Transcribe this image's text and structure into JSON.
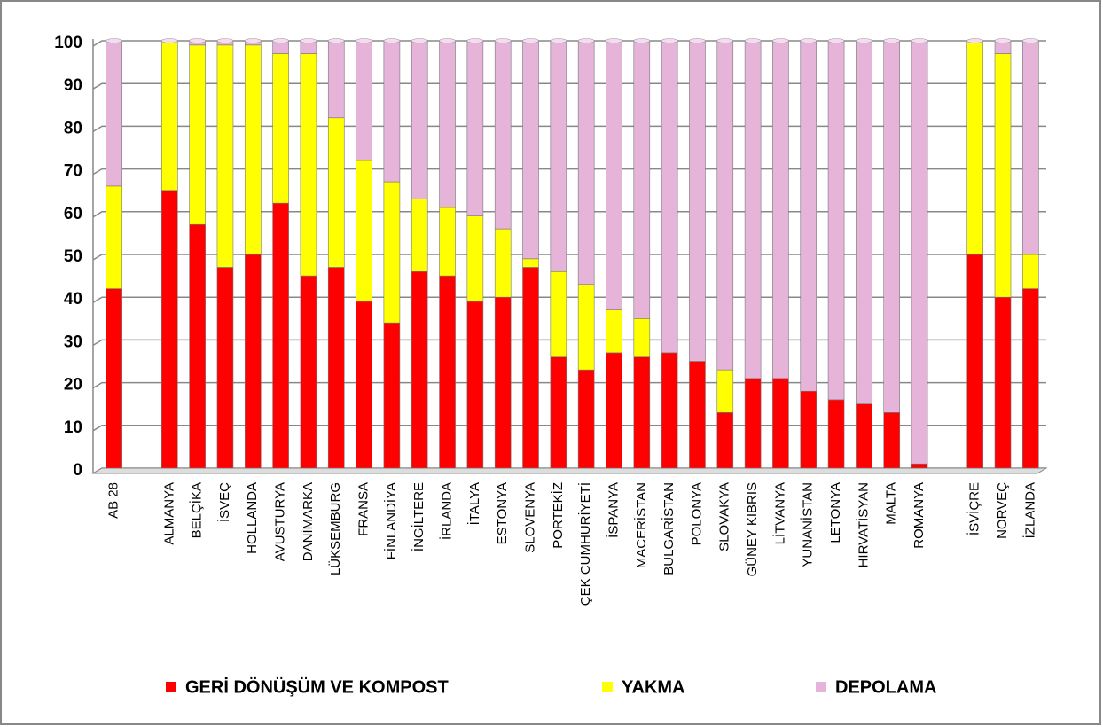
{
  "chart_data": {
    "type": "stacked_bar",
    "categories": [
      "AB 28",
      null,
      "ALMANYA",
      "BELÇİKA",
      "İSVEÇ",
      "HOLLANDA",
      "AVUSTURYA",
      "DANİMARKA",
      "LÜKSEMBURG",
      "FRANSA",
      "FİNLANDİYA",
      "İNGİLTERE",
      "İRLANDA",
      "İTALYA",
      "ESTONYA",
      "SLOVENYA",
      "PORTEKİZ",
      "ÇEK CUMHURİYETİ",
      "İSPANYA",
      "MACERİSTAN",
      "BULGARİSTAN",
      "POLONYA",
      "SLOVAKYA",
      "GÜNEY KIBRIS",
      "LİTVANYA",
      "YUNANİSTAN",
      "LETONYA",
      "HIRVATİSYAN",
      "MALTA",
      "ROMANYA",
      null,
      "İSVİÇRE",
      "NORVEÇ",
      "İZLANDA"
    ],
    "series": [
      {
        "name": "GERİ DÖNÜŞÜM VE KOMPOST",
        "color": "#ff0000",
        "values": [
          42,
          null,
          65,
          57,
          47,
          50,
          62,
          45,
          47,
          39,
          34,
          46,
          45,
          39,
          40,
          47,
          26,
          23,
          27,
          26,
          27,
          25,
          13,
          21,
          21,
          18,
          16,
          15,
          13,
          1,
          null,
          50,
          40,
          42
        ]
      },
      {
        "name": "YAKMA",
        "color": "#ffff00",
        "values": [
          24,
          null,
          35,
          42,
          52,
          49,
          35,
          52,
          35,
          33,
          33,
          17,
          16,
          20,
          16,
          2,
          20,
          20,
          10,
          9,
          0,
          0,
          10,
          0,
          0,
          0,
          0,
          0,
          0,
          0,
          null,
          50,
          57,
          8
        ]
      },
      {
        "name": "DEPOLAMA",
        "color": "#e6b3d9",
        "values": [
          34,
          null,
          0,
          1,
          1,
          1,
          3,
          3,
          18,
          28,
          33,
          37,
          39,
          41,
          44,
          51,
          54,
          57,
          63,
          65,
          73,
          75,
          77,
          79,
          79,
          82,
          84,
          85,
          87,
          99,
          null,
          0,
          3,
          50
        ]
      }
    ],
    "ylim": [
      0,
      100
    ],
    "yticks": [
      0,
      10,
      20,
      30,
      40,
      50,
      60,
      70,
      80,
      90,
      100
    ],
    "grid": true,
    "legend": "bottom"
  }
}
